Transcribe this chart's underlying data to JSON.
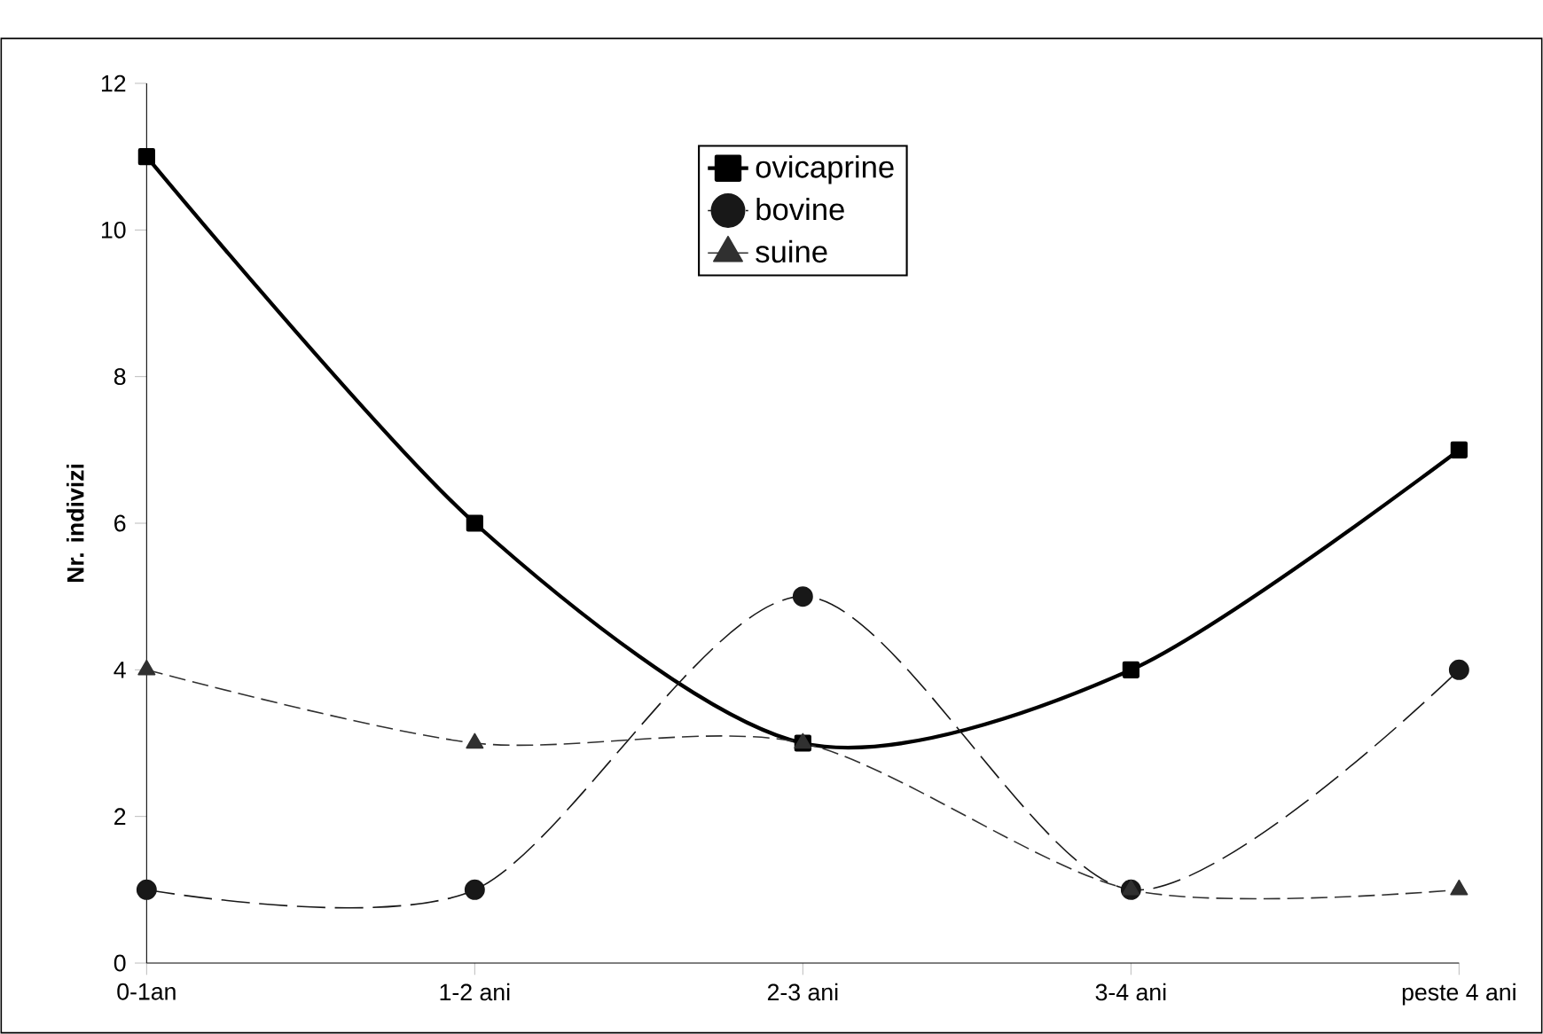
{
  "chart_data": {
    "type": "line",
    "ylabel": "Nr. indivizi",
    "categories": [
      "0-1an",
      "1-2 ani",
      "2-3 ani",
      "3-4 ani",
      "peste 4 ani"
    ],
    "series": [
      {
        "name": "ovicaprine",
        "color": "#000000",
        "values": [
          11,
          6,
          3,
          4,
          7
        ],
        "marker": "square",
        "line_style": "solid"
      },
      {
        "name": "bovine",
        "color": "#181818",
        "values": [
          1,
          1,
          5,
          1,
          4
        ],
        "marker": "circle",
        "line_style": "dashed"
      },
      {
        "name": "suine",
        "color": "#303030",
        "values": [
          4,
          3,
          3,
          1,
          1
        ],
        "marker": "triangle",
        "line_style": "dotted"
      }
    ],
    "ylim": [
      0,
      12
    ],
    "yticks": [
      0,
      2,
      4,
      6,
      8,
      10,
      12
    ],
    "grid": false,
    "legend": "top"
  }
}
